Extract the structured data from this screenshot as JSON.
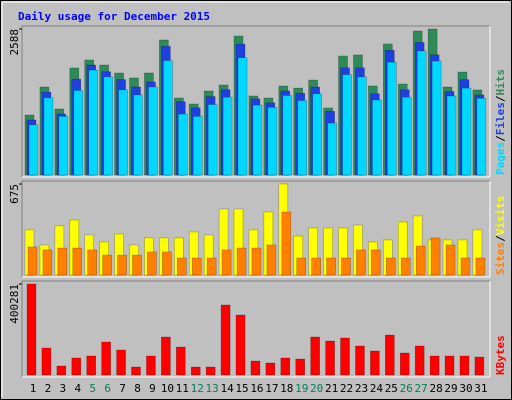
{
  "chart_data": [
    {
      "type": "bar",
      "title": "Daily usage for December 2015",
      "series": [
        {
          "name": "Hits",
          "color": "#2e8b57",
          "values": [
            1064,
            1560,
            1170,
            1897,
            2039,
            1950,
            1808,
            1720,
            1808,
            2393,
            1365,
            1259,
            1489,
            1596,
            2464,
            1401,
            1365,
            1578,
            1542,
            1684,
            1188,
            2110,
            2128,
            1578,
            2323,
            1613,
            2553,
            2588,
            1560,
            1826,
            1507
          ]
        },
        {
          "name": "Files",
          "color": "#1f3fe0",
          "values": [
            975,
            1470,
            1080,
            1700,
            1950,
            1830,
            1690,
            1560,
            1650,
            2280,
            1300,
            1190,
            1390,
            1510,
            2320,
            1350,
            1280,
            1490,
            1450,
            1560,
            1130,
            1900,
            1900,
            1440,
            2210,
            1510,
            2350,
            2130,
            1480,
            1690,
            1420
          ]
        },
        {
          "name": "Pages",
          "color": "#00d8ff",
          "values": [
            890,
            1370,
            1040,
            1500,
            1860,
            1740,
            1510,
            1420,
            1560,
            2030,
            1080,
            1040,
            1250,
            1380,
            2080,
            1240,
            1200,
            1410,
            1320,
            1440,
            920,
            1780,
            1740,
            1330,
            2000,
            1380,
            2200,
            2020,
            1400,
            1540,
            1360
          ]
        }
      ],
      "ylim": [
        0,
        2588
      ],
      "yticks": [
        2588
      ],
      "legend_separator": "/"
    },
    {
      "type": "bar",
      "series": [
        {
          "name": "Visits",
          "color": "#ffff00",
          "values": [
            334,
            223,
            364,
            408,
            297,
            245,
            304,
            223,
            275,
            275,
            275,
            319,
            297,
            490,
            490,
            334,
            467,
            675,
            289,
            349,
            349,
            349,
            371,
            245,
            260,
            393,
            438,
            260,
            260,
            260,
            334
          ]
        },
        {
          "name": "Sites",
          "color": "#ff8000",
          "values": [
            208,
            186,
            200,
            200,
            186,
            148,
            148,
            148,
            171,
            171,
            126,
            126,
            126,
            186,
            200,
            200,
            223,
            467,
            126,
            126,
            126,
            126,
            186,
            186,
            126,
            126,
            215,
            275,
            223,
            126,
            126
          ]
        }
      ],
      "ylim": [
        0,
        675
      ],
      "yticks": [
        675
      ],
      "legend_separator": "/"
    },
    {
      "type": "bar",
      "series": [
        {
          "name": "KBytes",
          "color": "#ff0000",
          "values": [
            400281,
            118773,
            39591,
            74783,
            83581,
            145167,
            109975,
            35192,
            83581,
            167162,
            123172,
            35192,
            35192,
            307930,
            263940,
            61586,
            52788,
            74783,
            70384,
            167162,
            149566,
            162763,
            127571,
            105576,
            175960,
            96778,
            127571,
            83581,
            83581,
            83581,
            79182
          ]
        }
      ],
      "ylim": [
        0,
        400281
      ],
      "yticks": [
        400281
      ],
      "categories": [
        "1",
        "2",
        "3",
        "4",
        "5",
        "6",
        "7",
        "8",
        "9",
        "10",
        "11",
        "12",
        "13",
        "14",
        "15",
        "16",
        "17",
        "18",
        "19",
        "20",
        "21",
        "22",
        "23",
        "24",
        "25",
        "26",
        "27",
        "28",
        "29",
        "30",
        "31"
      ],
      "category_colors": [
        "#000000",
        "#000000",
        "#000000",
        "#000000",
        "#00805c",
        "#00805c",
        "#000000",
        "#000000",
        "#000000",
        "#000000",
        "#000000",
        "#00805c",
        "#00805c",
        "#000000",
        "#000000",
        "#000000",
        "#000000",
        "#000000",
        "#00805c",
        "#00805c",
        "#000000",
        "#000000",
        "#000000",
        "#000000",
        "#000000",
        "#00805c",
        "#00805c",
        "#000000",
        "#000000",
        "#000000",
        "#000000"
      ]
    }
  ]
}
